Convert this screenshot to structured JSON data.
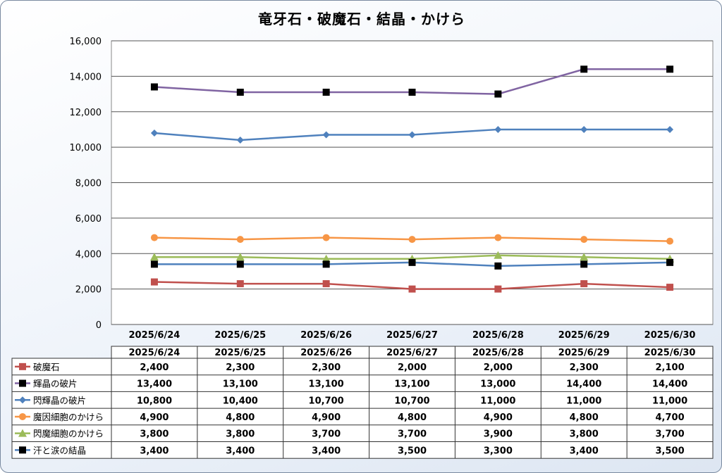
{
  "chart_data": {
    "type": "line",
    "title": "竜牙石・破魔石・結晶・かけら",
    "categories": [
      "2025/6/24",
      "2025/6/25",
      "2025/6/26",
      "2025/6/27",
      "2025/6/28",
      "2025/6/29",
      "2025/6/30"
    ],
    "ylim": [
      0,
      16000
    ],
    "yticks": [
      0,
      2000,
      4000,
      6000,
      8000,
      10000,
      12000,
      14000,
      16000
    ],
    "ytick_labels": [
      "0",
      "2,000",
      "4,000",
      "6,000",
      "8,000",
      "10,000",
      "12,000",
      "14,000",
      "16,000"
    ],
    "grid": true,
    "legend": "data-table",
    "series": [
      {
        "name": "破魔石",
        "color": "#c0504d",
        "marker": "square",
        "values": [
          2400,
          2300,
          2300,
          2000,
          2000,
          2300,
          2100
        ],
        "labels": [
          "2,400",
          "2,300",
          "2,300",
          "2,000",
          "2,000",
          "2,300",
          "2,100"
        ]
      },
      {
        "name": "輝晶の破片",
        "color": "#8064a2",
        "marker": "square-black",
        "values": [
          13400,
          13100,
          13100,
          13100,
          13000,
          14400,
          14400
        ],
        "labels": [
          "13,400",
          "13,100",
          "13,100",
          "13,100",
          "13,000",
          "14,400",
          "14,400"
        ]
      },
      {
        "name": "閃輝晶の破片",
        "color": "#4f81bd",
        "marker": "diamond",
        "values": [
          10800,
          10400,
          10700,
          10700,
          11000,
          11000,
          11000
        ],
        "labels": [
          "10,800",
          "10,400",
          "10,700",
          "10,700",
          "11,000",
          "11,000",
          "11,000"
        ]
      },
      {
        "name": "魔因細胞のかけら",
        "color": "#f79646",
        "marker": "circle",
        "values": [
          4900,
          4800,
          4900,
          4800,
          4900,
          4800,
          4700
        ],
        "labels": [
          "4,900",
          "4,800",
          "4,900",
          "4,800",
          "4,900",
          "4,800",
          "4,700"
        ]
      },
      {
        "name": "閃魔細胞のかけら",
        "color": "#9bbb59",
        "marker": "triangle",
        "values": [
          3800,
          3800,
          3700,
          3700,
          3900,
          3800,
          3700
        ],
        "labels": [
          "3,800",
          "3,800",
          "3,700",
          "3,700",
          "3,900",
          "3,800",
          "3,700"
        ]
      },
      {
        "name": "汗と涙の結晶",
        "color": "#4f81bd",
        "marker": "square-black",
        "values": [
          3400,
          3400,
          3400,
          3500,
          3300,
          3400,
          3500
        ],
        "labels": [
          "3,400",
          "3,400",
          "3,400",
          "3,500",
          "3,300",
          "3,400",
          "3,500"
        ]
      }
    ]
  }
}
